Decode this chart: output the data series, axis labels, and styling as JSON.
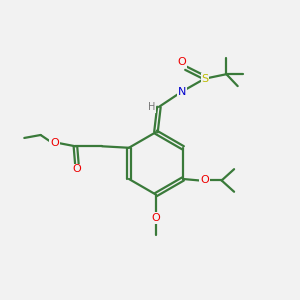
{
  "background_color": "#f2f2f2",
  "bond_color": "#3a7a3a",
  "O_color": "#ee0000",
  "N_color": "#0000cc",
  "S_color": "#bbbb00",
  "H_color": "#777777",
  "line_width": 1.6,
  "figsize": [
    3.0,
    3.0
  ],
  "dpi": 100,
  "xlim": [
    0,
    10
  ],
  "ylim": [
    0,
    10
  ]
}
